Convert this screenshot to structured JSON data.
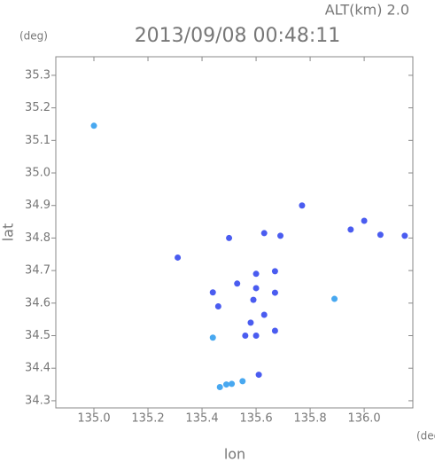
{
  "chart_data": {
    "type": "scatter",
    "title": "2013/09/08 00:48:11",
    "subtitle": "ALT(km) 2.0",
    "y_unit": "(deg)",
    "x_unit": "(deg)",
    "x_label": "lon",
    "y_label": "lat",
    "xlim": [
      134.859,
      136.18
    ],
    "ylim": [
      34.278,
      35.357
    ],
    "xticks": [
      {
        "value": 135.0,
        "label": "135.0"
      },
      135.2,
      135.4,
      135.6,
      135.8,
      {
        "value": 136.0,
        "label": "136.0"
      }
    ],
    "yticks": [
      34.3,
      34.4,
      34.5,
      34.6,
      34.7,
      34.8,
      34.9,
      {
        "value": 35.0,
        "label": "35.0"
      },
      35.1,
      35.2,
      35.3
    ],
    "series": [
      {
        "color": "#4a5cf0",
        "x": [
          135.77,
          135.63,
          135.5,
          135.69,
          135.95,
          136.0,
          136.06,
          136.15,
          135.31,
          135.44,
          135.46,
          135.6,
          135.67,
          135.53,
          135.6,
          135.67,
          135.59,
          135.63,
          135.58,
          135.56,
          135.6,
          135.67,
          135.61
        ],
        "values": [
          34.9,
          34.815,
          34.8,
          34.807,
          34.826,
          34.853,
          34.81,
          34.807,
          34.74,
          34.633,
          34.59,
          34.69,
          34.698,
          34.66,
          34.646,
          34.632,
          34.61,
          34.564,
          34.54,
          34.5,
          34.5,
          34.515,
          34.38
        ]
      },
      {
        "color": "#48a8f0",
        "x": [
          135.0,
          135.44,
          135.89,
          135.466,
          135.49,
          135.51,
          135.55
        ],
        "values": [
          35.145,
          34.494,
          34.613,
          34.342,
          34.35,
          34.352,
          34.36
        ]
      }
    ]
  }
}
